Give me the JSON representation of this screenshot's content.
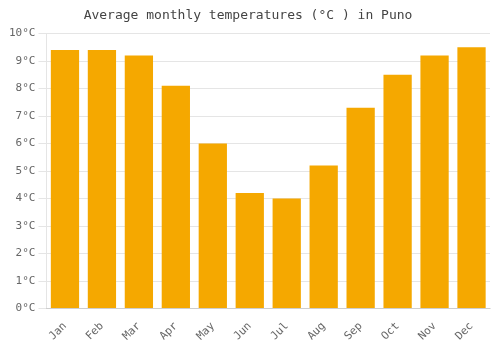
{
  "chart_data": {
    "type": "bar",
    "title": "Average monthly temperatures (°C ) in Puno",
    "categories": [
      "Jan",
      "Feb",
      "Mar",
      "Apr",
      "May",
      "Jun",
      "Jul",
      "Aug",
      "Sep",
      "Oct",
      "Nov",
      "Dec"
    ],
    "values": [
      9.4,
      9.4,
      9.2,
      8.1,
      6.0,
      4.2,
      4.0,
      5.2,
      7.3,
      8.5,
      9.2,
      9.5
    ],
    "color": "#F5A800",
    "ylim": [
      0,
      10
    ],
    "yticks": [
      {
        "value": 0,
        "label": "0°C"
      },
      {
        "value": 1,
        "label": "1°C"
      },
      {
        "value": 2,
        "label": "2°C"
      },
      {
        "value": 3,
        "label": "3°C"
      },
      {
        "value": 4,
        "label": "4°C"
      },
      {
        "value": 5,
        "label": "5°C"
      },
      {
        "value": 6,
        "label": "6°C"
      },
      {
        "value": 7,
        "label": "7°C"
      },
      {
        "value": 8,
        "label": "8°C"
      },
      {
        "value": 9,
        "label": "9°C"
      },
      {
        "value": 10,
        "label": "10°C"
      }
    ],
    "grid": true
  }
}
